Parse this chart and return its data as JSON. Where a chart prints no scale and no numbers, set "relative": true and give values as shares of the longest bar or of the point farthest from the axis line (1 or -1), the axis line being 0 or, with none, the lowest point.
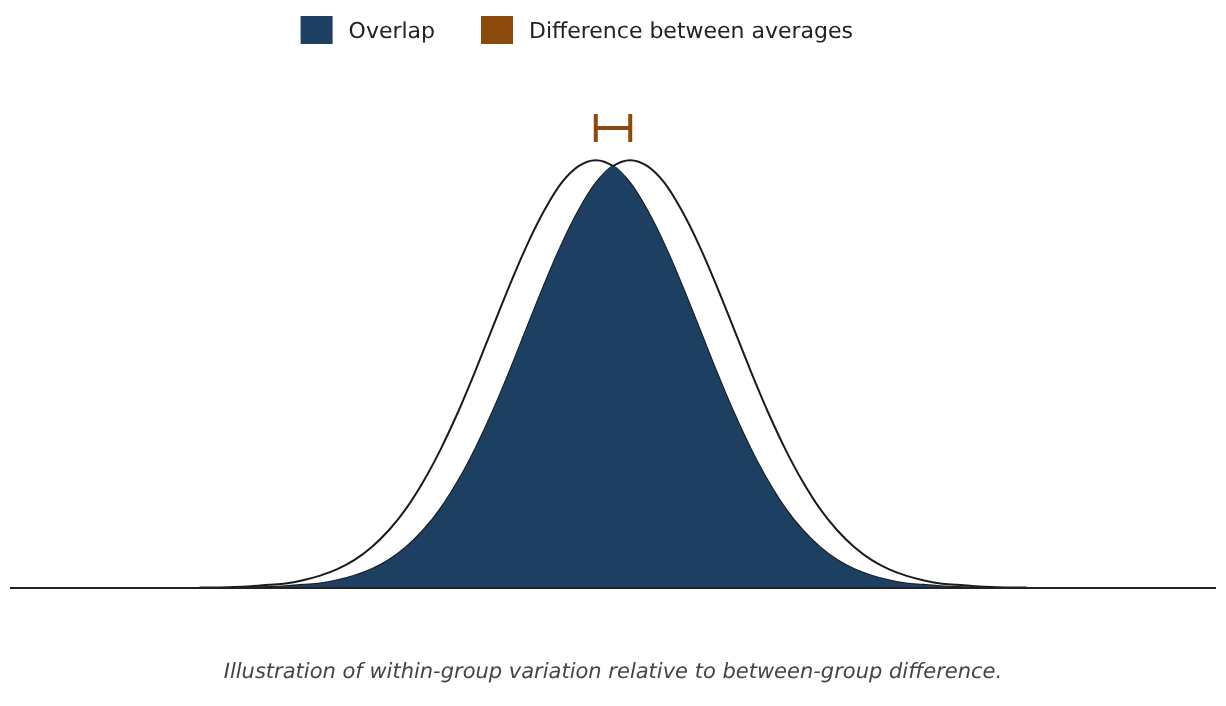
{
  "chart_data": {
    "type": "area",
    "relative": true,
    "legend": "top",
    "categories": [
      null,
      null,
      null,
      null,
      null,
      null,
      null,
      null,
      null,
      null,
      null,
      null,
      null,
      null,
      null,
      null,
      null,
      null,
      null,
      null,
      null,
      null,
      null,
      null,
      null,
      null,
      null,
      null,
      null,
      null,
      null,
      null,
      null,
      null,
      null,
      null,
      null,
      null,
      null,
      null,
      null,
      null,
      null,
      null,
      null,
      null,
      null,
      null,
      null,
      null,
      null,
      null,
      null,
      null,
      null,
      null,
      null,
      null,
      null,
      null,
      null,
      null,
      null,
      null,
      null,
      null,
      null,
      null,
      null,
      null,
      null
    ],
    "series": [
      {
        "type": "line",
        "color": "#1a1a1a",
        "values": [
          null,
          null,
          null,
          null,
          null,
          null,
          null,
          null,
          null,
          null,
          null,
          0.001,
          0.001,
          0.002,
          0.004,
          0.007,
          0.01,
          0.017,
          0.027,
          0.041,
          0.061,
          0.089,
          0.126,
          0.173,
          0.232,
          0.302,
          0.382,
          0.471,
          0.565,
          0.658,
          0.745,
          0.82,
          0.88,
          0.917,
          0.93,
          0.917,
          0.88,
          0.82,
          0.745,
          0.658,
          0.565,
          0.471,
          0.382,
          0.302,
          0.232,
          0.173,
          0.126,
          0.089,
          0.061,
          0.041,
          0.027,
          0.017,
          0.01,
          0.007,
          0.004,
          0.002,
          0.001,
          0.001,
          null,
          null,
          null,
          null,
          null,
          null,
          null,
          null,
          null,
          null,
          null,
          null,
          null
        ]
      },
      {
        "type": "line",
        "color": "#1a1a1a",
        "values": [
          null,
          null,
          null,
          null,
          null,
          null,
          null,
          null,
          null,
          null,
          null,
          null,
          null,
          0.001,
          0.001,
          0.002,
          0.004,
          0.007,
          0.01,
          0.017,
          0.027,
          0.041,
          0.061,
          0.089,
          0.126,
          0.173,
          0.232,
          0.302,
          0.382,
          0.471,
          0.565,
          0.658,
          0.745,
          0.82,
          0.88,
          0.917,
          0.93,
          0.917,
          0.88,
          0.82,
          0.745,
          0.658,
          0.565,
          0.471,
          0.382,
          0.302,
          0.232,
          0.173,
          0.126,
          0.089,
          0.061,
          0.041,
          0.027,
          0.017,
          0.01,
          0.007,
          0.004,
          0.002,
          0.001,
          0.001,
          null,
          null,
          null,
          null,
          null,
          null,
          null,
          null,
          null,
          null,
          null
        ]
      },
      {
        "name": "Overlap",
        "color": "#1d3f62",
        "values": [
          0,
          0,
          0,
          0,
          0,
          0,
          0,
          0,
          0,
          0,
          0,
          0,
          0,
          0.001,
          0.001,
          0.002,
          0.004,
          0.007,
          0.01,
          0.017,
          0.027,
          0.041,
          0.061,
          0.089,
          0.126,
          0.173,
          0.232,
          0.302,
          0.382,
          0.471,
          0.565,
          0.658,
          0.745,
          0.82,
          0.88,
          0.917,
          0.88,
          0.82,
          0.745,
          0.658,
          0.565,
          0.471,
          0.382,
          0.302,
          0.232,
          0.173,
          0.126,
          0.089,
          0.061,
          0.041,
          0.027,
          0.017,
          0.01,
          0.007,
          0.004,
          0.002,
          0.001,
          0.001,
          0,
          0,
          0,
          0,
          0,
          0,
          0,
          0,
          0,
          0,
          0,
          0,
          0
        ]
      },
      {
        "type": "line",
        "name": "Difference between averages",
        "color": "#8b4a0c",
        "values": [
          null,
          null,
          null,
          null,
          null,
          null,
          null,
          null,
          null,
          null,
          null,
          null,
          null,
          null,
          null,
          null,
          null,
          null,
          null,
          null,
          null,
          null,
          null,
          null,
          null,
          null,
          null,
          null,
          null,
          null,
          null,
          null,
          null,
          null,
          1,
          null,
          1,
          null,
          null,
          null,
          null,
          null,
          null,
          null,
          null,
          null,
          null,
          null,
          null,
          null,
          null,
          null,
          null,
          null,
          null,
          null,
          null,
          null,
          null,
          null,
          null,
          null,
          null,
          null,
          null,
          null,
          null,
          null,
          null,
          null,
          null
        ]
      }
    ],
    "annotations": [
      "Illustration of within-group variation relative to between-group difference."
    ]
  }
}
